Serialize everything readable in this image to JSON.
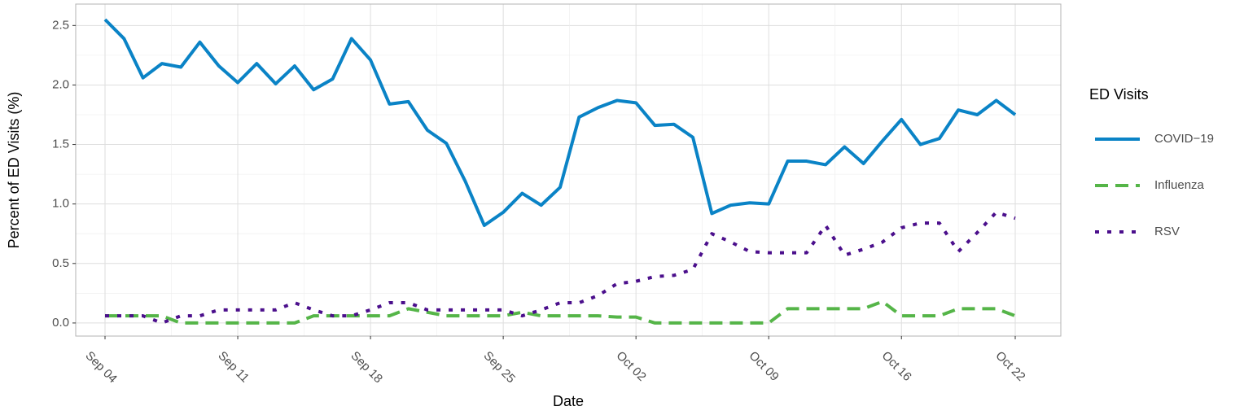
{
  "chart_data": {
    "type": "line",
    "x_label": "Date",
    "y_label": "Percent of ED Visits (%)",
    "legend_title": "ED Visits",
    "legend": "right",
    "grid": true,
    "categories": [
      "Sep 04",
      null,
      null,
      null,
      null,
      null,
      null,
      "Sep 11",
      null,
      null,
      null,
      null,
      null,
      null,
      "Sep 18",
      null,
      null,
      null,
      null,
      null,
      null,
      "Sep 25",
      null,
      null,
      null,
      null,
      null,
      null,
      "Oct 02",
      null,
      null,
      null,
      null,
      null,
      null,
      "Oct 09",
      null,
      null,
      null,
      null,
      null,
      null,
      "Oct 16",
      null,
      null,
      null,
      null,
      null,
      "Oct 22"
    ],
    "ylim": [
      -0.11,
      2.68
    ],
    "yticks": [
      {
        "value": 0,
        "label": "0.0"
      },
      0.5,
      {
        "value": 1,
        "label": "1.0"
      },
      1.5,
      {
        "value": 2,
        "label": "2.0"
      },
      2.5
    ],
    "series": [
      {
        "name": "COVID−19",
        "color": "#0a83c6",
        "dash": "solid",
        "values": [
          2.55,
          2.39,
          2.06,
          2.18,
          2.15,
          2.36,
          2.16,
          2.02,
          2.18,
          2.01,
          2.16,
          1.96,
          2.05,
          2.39,
          2.21,
          1.84,
          1.86,
          1.62,
          1.51,
          1.19,
          0.82,
          0.93,
          1.09,
          0.99,
          1.14,
          1.73,
          1.81,
          1.87,
          1.85,
          1.66,
          1.67,
          1.56,
          0.92,
          0.99,
          1.01,
          1.0,
          1.36,
          1.36,
          1.33,
          1.48,
          1.34,
          1.53,
          1.71,
          1.5,
          1.55,
          1.79,
          1.75,
          1.87,
          1.75
        ]
      },
      {
        "name": "Influenza",
        "color": "#55b548",
        "dash": "dashed",
        "values": [
          0.06,
          0.06,
          0.06,
          0.06,
          0,
          0,
          0,
          0,
          0,
          0,
          0,
          0.06,
          0.06,
          0.06,
          0.06,
          0.06,
          0.12,
          0.09,
          0.06,
          0.06,
          0.06,
          0.06,
          0.09,
          0.06,
          0.06,
          0.06,
          0.06,
          0.05,
          0.05,
          0,
          0,
          0,
          0,
          0,
          0,
          0,
          0.12,
          0.12,
          0.12,
          0.12,
          0.12,
          0.18,
          0.06,
          0.06,
          0.06,
          0.12,
          0.12,
          0.12,
          0.06
        ]
      },
      {
        "name": "RSV",
        "color": "#4b0f8c",
        "dash": "dotted",
        "values": [
          0.06,
          0.06,
          0.06,
          0.0,
          0.06,
          0.06,
          0.11,
          0.11,
          0.11,
          0.11,
          0.17,
          0.11,
          0.06,
          0.06,
          0.11,
          0.17,
          0.17,
          0.11,
          0.11,
          0.11,
          0.11,
          0.11,
          0.06,
          0.11,
          0.17,
          0.17,
          0.23,
          0.33,
          0.35,
          0.39,
          0.4,
          0.45,
          0.75,
          0.68,
          0.6,
          0.59,
          0.59,
          0.59,
          0.82,
          0.57,
          0.62,
          0.68,
          0.8,
          0.84,
          0.84,
          0.6,
          0.76,
          0.93,
          0.88
        ]
      }
    ]
  }
}
